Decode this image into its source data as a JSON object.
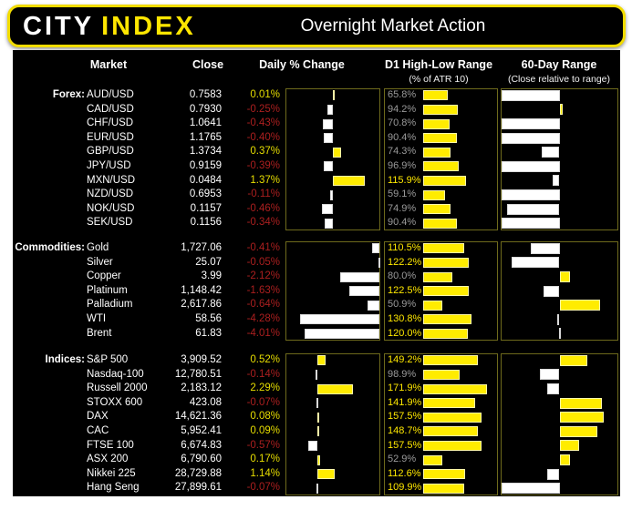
{
  "header": {
    "logo_city": "CITY",
    "logo_index": "INDEX",
    "title": "Overnight Market Action"
  },
  "columns": {
    "market": "Market",
    "close": "Close",
    "daily": "Daily % Change",
    "d1": "D1 High-Low Range",
    "d1_sub": "(% of ATR 10)",
    "sixty": "60-Day Range",
    "sixty_sub": "(Close relative to range)"
  },
  "colors": {
    "accent_yellow": "#ffe600",
    "bar_yellow": "#ffec00",
    "bar_white": "#ffffff",
    "positive_text": "#e6dd00",
    "negative_text": "#ab1f1f",
    "muted_gray": "#9a9a9a",
    "atr_highlight": "#ffe800",
    "chart_border": "#6e6a1c"
  },
  "atr_threshold": 100,
  "chart_data": [
    {
      "type": "bar",
      "title": "Forex:",
      "categories": [
        "AUD/USD",
        "CAD/USD",
        "CHF/USD",
        "EUR/USD",
        "GBP/USD",
        "JPY/USD",
        "MXN/USD",
        "NZD/USD",
        "NOK/USD",
        "SEK/USD"
      ],
      "daily_axis": [
        -2,
        2
      ],
      "atr_axis": [
        0,
        195
      ],
      "range_axis": [
        0,
        100
      ],
      "range_baseline": 50,
      "series": [
        {
          "name": "Close",
          "values": [
            "0.7583",
            "0.7930",
            "1.0641",
            "1.1765",
            "1.3734",
            "0.9159",
            "0.0484",
            "0.6953",
            "0.1157",
            "0.1156"
          ]
        },
        {
          "name": "Daily % Change",
          "values": [
            0.01,
            -0.25,
            -0.43,
            -0.4,
            0.37,
            -0.39,
            1.37,
            -0.11,
            -0.46,
            -0.34
          ],
          "labels": [
            "0.01%",
            "-0.25%",
            "-0.43%",
            "-0.40%",
            "0.37%",
            "-0.39%",
            "1.37%",
            "-0.11%",
            "-0.46%",
            "-0.34%"
          ]
        },
        {
          "name": "D1 High-Low Range (% of ATR 10)",
          "values": [
            65.8,
            94.2,
            70.8,
            90.4,
            74.3,
            96.9,
            115.9,
            59.1,
            74.9,
            90.4
          ],
          "labels": [
            "65.8%",
            "94.2%",
            "70.8%",
            "90.4%",
            "74.3%",
            "96.9%",
            "115.9%",
            "59.1%",
            "74.9%",
            "90.4%"
          ]
        },
        {
          "name": "60-Day Range (close position in range, % est.)",
          "values": [
            0,
            53,
            0,
            0,
            35,
            0,
            44,
            0,
            5,
            0
          ]
        }
      ]
    },
    {
      "type": "bar",
      "title": "Commodities:",
      "categories": [
        "Gold",
        "Silver",
        "Copper",
        "Platinum",
        "Palladium",
        "WTI",
        "Brent"
      ],
      "daily_axis": [
        -5,
        0
      ],
      "atr_axis": [
        0,
        195
      ],
      "range_axis": [
        0,
        100
      ],
      "range_baseline": 50,
      "series": [
        {
          "name": "Close",
          "values": [
            "1,727.06",
            "25.07",
            "3.99",
            "1,148.42",
            "2,617.86",
            "58.56",
            "61.83"
          ]
        },
        {
          "name": "Daily % Change",
          "values": [
            -0.41,
            -0.05,
            -2.12,
            -1.63,
            -0.64,
            -4.28,
            -4.01
          ],
          "labels": [
            "-0.41%",
            "-0.05%",
            "-2.12%",
            "-1.63%",
            "-0.64%",
            "-4.28%",
            "-4.01%"
          ]
        },
        {
          "name": "D1 High-Low Range (% of ATR 10)",
          "values": [
            110.5,
            122.2,
            80.0,
            122.5,
            50.9,
            130.8,
            120.0
          ],
          "labels": [
            "110.5%",
            "122.2%",
            "80.0%",
            "122.5%",
            "50.9%",
            "130.8%",
            "120.0%"
          ]
        },
        {
          "name": "60-Day Range (close position in range, % est.)",
          "values": [
            25,
            9,
            59,
            36,
            85,
            48,
            49.5
          ]
        }
      ]
    },
    {
      "type": "bar",
      "title": "Indices:",
      "categories": [
        "S&P 500",
        "Nasdaq-100",
        "Russell 2000",
        "STOXX 600",
        "DAX",
        "CAC",
        "FTSE 100",
        "ASX 200",
        "Nikkei 225",
        "Hang Seng"
      ],
      "daily_axis": [
        -2,
        4
      ],
      "atr_axis": [
        0,
        195
      ],
      "range_axis": [
        0,
        100
      ],
      "range_baseline": 50,
      "series": [
        {
          "name": "Close",
          "values": [
            "3,909.52",
            "12,780.51",
            "2,183.12",
            "423.08",
            "14,621.36",
            "5,952.41",
            "6,674.83",
            "6,790.60",
            "28,729.88",
            "27,899.61"
          ]
        },
        {
          "name": "Daily % Change",
          "values": [
            0.52,
            -0.14,
            2.29,
            -0.07,
            0.08,
            0.09,
            -0.57,
            0.17,
            1.14,
            -0.07
          ],
          "labels": [
            "0.52%",
            "-0.14%",
            "2.29%",
            "-0.07%",
            "0.08%",
            "0.09%",
            "-0.57%",
            "0.17%",
            "1.14%",
            "-0.07%"
          ]
        },
        {
          "name": "D1 High-Low Range (% of ATR 10)",
          "values": [
            149.2,
            98.9,
            171.9,
            141.9,
            157.5,
            148.7,
            157.5,
            52.9,
            112.6,
            109.9
          ],
          "labels": [
            "149.2%",
            "98.9%",
            "171.9%",
            "141.9%",
            "157.5%",
            "148.7%",
            "157.5%",
            "52.9%",
            "112.6%",
            "109.9%"
          ]
        },
        {
          "name": "60-Day Range (close position in range, % est.)",
          "values": [
            74,
            33,
            39,
            87,
            88,
            83,
            67,
            59,
            39,
            0
          ]
        }
      ]
    }
  ]
}
